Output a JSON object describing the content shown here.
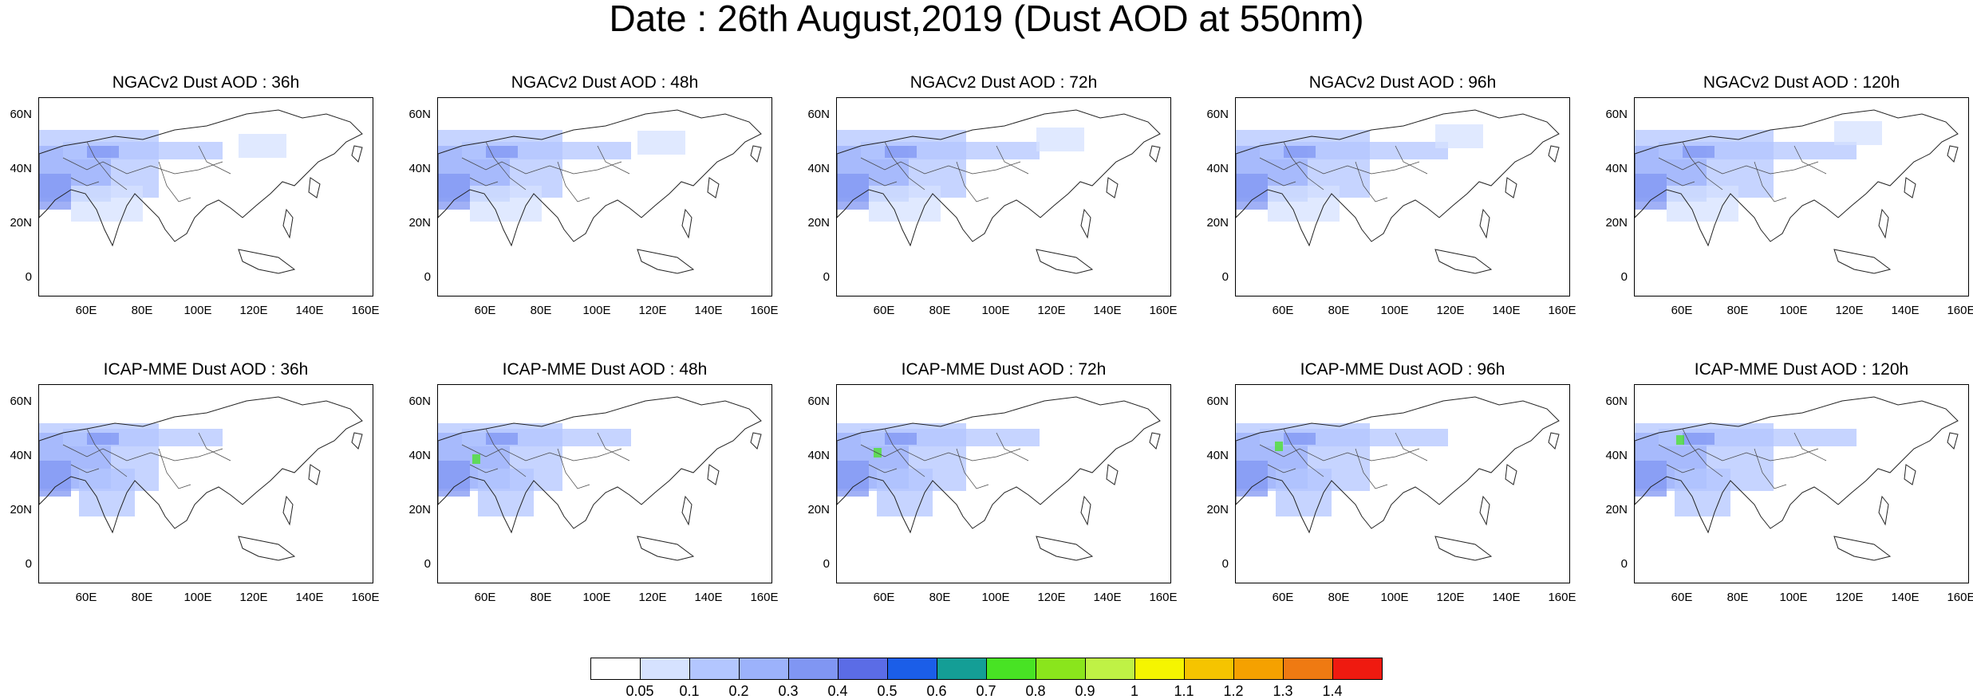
{
  "title": "Date : 26th August,2019 (Dust AOD at 550nm)",
  "lat_labels": [
    "60N",
    "40N",
    "20N",
    "0"
  ],
  "lon_labels": [
    "60E",
    "80E",
    "100E",
    "120E",
    "140E",
    "160E"
  ],
  "rows": [
    {
      "model": "NGACv2",
      "panels": [
        {
          "title": "NGACv2 Dust AOD : 36h",
          "forecast_hour": 36
        },
        {
          "title": "NGACv2 Dust AOD : 48h",
          "forecast_hour": 48
        },
        {
          "title": "NGACv2 Dust AOD : 72h",
          "forecast_hour": 72
        },
        {
          "title": "NGACv2 Dust AOD : 96h",
          "forecast_hour": 96
        },
        {
          "title": "NGACv2 Dust AOD : 120h",
          "forecast_hour": 120
        }
      ]
    },
    {
      "model": "ICAP-MME",
      "panels": [
        {
          "title": "ICAP-MME Dust AOD : 36h",
          "forecast_hour": 36
        },
        {
          "title": "ICAP-MME Dust AOD : 48h",
          "forecast_hour": 48
        },
        {
          "title": "ICAP-MME Dust AOD : 72h",
          "forecast_hour": 72
        },
        {
          "title": "ICAP-MME Dust AOD : 96h",
          "forecast_hour": 96
        },
        {
          "title": "ICAP-MME Dust AOD : 120h",
          "forecast_hour": 120
        }
      ]
    }
  ],
  "colorbar": {
    "labels": [
      "0.05",
      "0.1",
      "0.2",
      "0.3",
      "0.4",
      "0.5",
      "0.6",
      "0.7",
      "0.8",
      "0.9",
      "1",
      "1.1",
      "1.2",
      "1.3",
      "1.4"
    ],
    "colors": [
      "#ffffff",
      "#d6e2ff",
      "#b3c6ff",
      "#9cb2fb",
      "#8096f3",
      "#5b6ce6",
      "#1b5ee8",
      "#149e96",
      "#48e324",
      "#8ae51c",
      "#bff245",
      "#f5f500",
      "#f5c400",
      "#f5a100",
      "#ef7a12",
      "#ef1a10"
    ]
  }
}
